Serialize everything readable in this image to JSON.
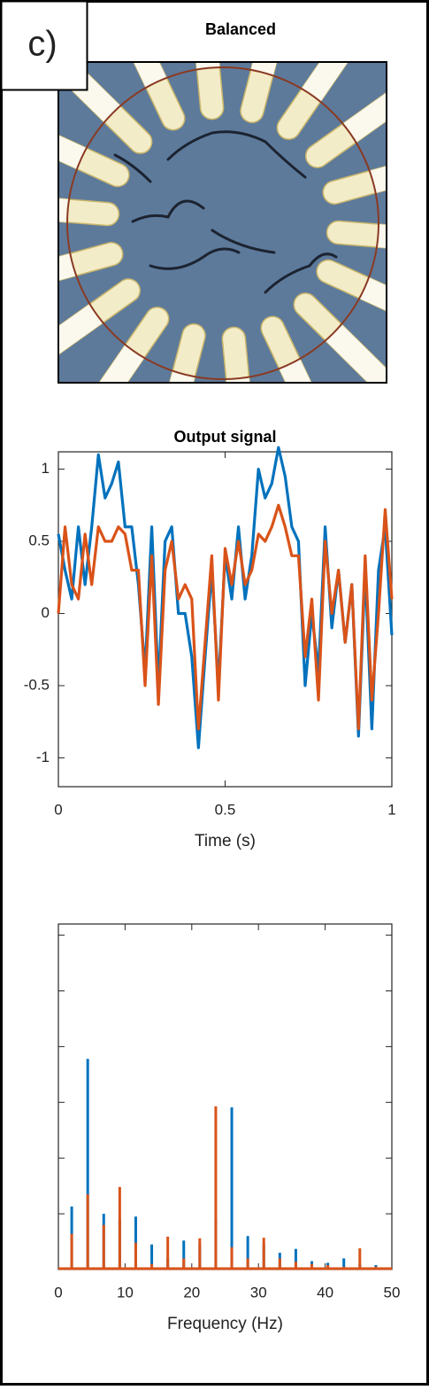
{
  "panel_label": "c)",
  "title": "Balanced",
  "chart_data": [
    {
      "type": "line",
      "title": "Output signal",
      "xlabel": "Time (s)",
      "x": [
        0,
        0.02,
        0.04,
        0.06,
        0.08,
        0.1,
        0.12,
        0.14,
        0.16,
        0.18,
        0.2,
        0.22,
        0.24,
        0.26,
        0.28,
        0.3,
        0.32,
        0.34,
        0.36,
        0.38,
        0.4,
        0.42,
        0.44,
        0.46,
        0.48,
        0.5,
        0.52,
        0.54,
        0.56,
        0.58,
        0.6,
        0.62,
        0.64,
        0.66,
        0.68,
        0.7,
        0.72,
        0.74,
        0.76,
        0.78,
        0.8,
        0.82,
        0.84,
        0.86,
        0.88,
        0.9,
        0.92,
        0.94,
        0.96,
        0.98,
        1
      ],
      "series": [
        {
          "color": "#0072bd",
          "values": [
            0.55,
            0.3,
            0.1,
            0.6,
            0.2,
            0.6,
            1.1,
            0.8,
            0.9,
            1.05,
            0.6,
            0.6,
            0.2,
            -0.4,
            0.6,
            -0.5,
            0.5,
            0.6,
            0.0,
            0.0,
            -0.3,
            -0.93,
            -0.3,
            0.3,
            -0.5,
            0.4,
            0.1,
            0.6,
            0.1,
            0.4,
            1.0,
            0.8,
            0.9,
            1.15,
            0.95,
            0.6,
            0.5,
            -0.5,
            0.0,
            -0.4,
            0.6,
            -0.1,
            0.3,
            -0.2,
            0.2,
            -0.85,
            0.3,
            -0.8,
            0.3,
            0.6,
            -0.15
          ]
        },
        {
          "color": "#d95319",
          "values": [
            0.0,
            0.6,
            0.2,
            0.1,
            0.55,
            0.2,
            0.6,
            0.5,
            0.5,
            0.6,
            0.55,
            0.3,
            0.3,
            -0.5,
            0.4,
            -0.63,
            0.3,
            0.5,
            0.1,
            0.2,
            0.1,
            -0.8,
            -0.2,
            0.4,
            -0.6,
            0.45,
            0.2,
            0.5,
            0.2,
            0.3,
            0.55,
            0.5,
            0.6,
            0.75,
            0.6,
            0.4,
            0.4,
            -0.3,
            0.1,
            -0.6,
            0.5,
            0.0,
            0.3,
            -0.2,
            0.2,
            -0.8,
            0.4,
            -0.6,
            0.0,
            0.72,
            0.1
          ]
        }
      ],
      "xlim": [
        0,
        1
      ],
      "xticks": [
        0,
        0.5,
        1
      ],
      "ylim": [
        -1.2,
        1.12
      ],
      "yticks": [
        -1,
        -0.5,
        0,
        0.5,
        1
      ]
    },
    {
      "type": "stem",
      "xlabel": "Frequency (Hz)",
      "x": [
        2,
        4.4,
        6.8,
        9.2,
        11.6,
        14,
        16.4,
        18.8,
        21.2,
        23.6,
        26,
        28.4,
        30.8,
        33.2,
        35.6,
        38,
        40.4,
        42.8,
        45.2,
        47.6
      ],
      "series": [
        {
          "color": "#0072bd",
          "values": [
            1.13,
            3.78,
            1.0,
            0.9,
            0.95,
            0.45,
            0.2,
            0.52,
            0.45,
            0.9,
            2.91,
            0.6,
            0.45,
            0.3,
            0.37,
            0.15,
            0.12,
            0.2,
            0.1,
            0.08
          ]
        },
        {
          "color": "#d95319",
          "values": [
            0.64,
            1.35,
            0.8,
            1.48,
            0.48,
            0.1,
            0.59,
            0.2,
            0.56,
            2.93,
            0.4,
            0.2,
            0.57,
            0.2,
            0.14,
            0.1,
            0.08,
            0.05,
            0.38,
            0.05
          ]
        }
      ],
      "xlim": [
        0,
        50
      ],
      "xticks": [
        0,
        10,
        20,
        30,
        40,
        50
      ],
      "ylim": [
        0,
        6.2
      ],
      "yticks": [
        0,
        1,
        2,
        3,
        4,
        5,
        6
      ],
      "show_ytick_labels": false
    }
  ]
}
